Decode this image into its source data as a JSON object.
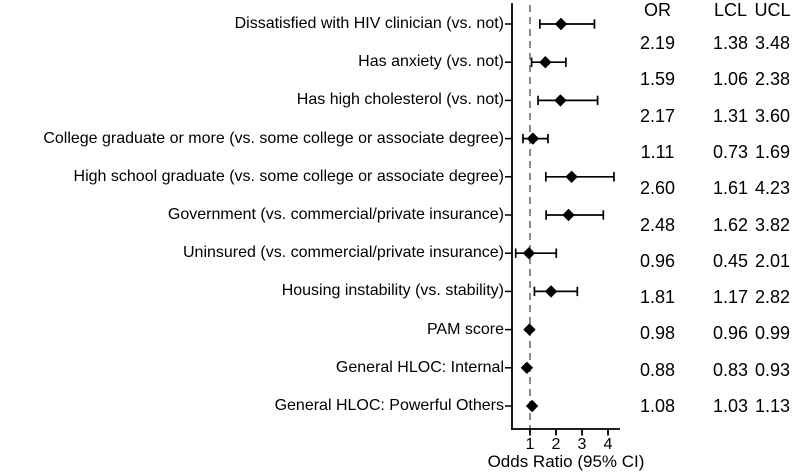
{
  "chart_data": {
    "type": "forest",
    "title": "",
    "xlabel": "Odds Ratio (95% CI)",
    "x_ticks": [
      1,
      2,
      3,
      4
    ],
    "xlim": [
      0.31,
      4.46
    ],
    "reference_line_x": 1,
    "grid": "off",
    "columns": {
      "or": "OR",
      "lcl": "LCL",
      "ucl": "UCL"
    },
    "rows": [
      {
        "label": "Dissatisfied with HIV clinician (vs. not)",
        "or": 2.19,
        "lcl": 1.38,
        "ucl": 3.48
      },
      {
        "label": "Has anxiety (vs. not)",
        "or": 1.59,
        "lcl": 1.06,
        "ucl": 2.38
      },
      {
        "label": "Has high cholesterol (vs. not)",
        "or": 2.17,
        "lcl": 1.31,
        "ucl": 3.6
      },
      {
        "label": "College graduate or more (vs. some college or associate degree)",
        "or": 1.11,
        "lcl": 0.73,
        "ucl": 1.69
      },
      {
        "label": "High school graduate (vs. some college or associate degree)",
        "or": 2.6,
        "lcl": 1.61,
        "ucl": 4.23
      },
      {
        "label": "Government (vs. commercial/private insurance)",
        "or": 2.48,
        "lcl": 1.62,
        "ucl": 3.82
      },
      {
        "label": "Uninsured (vs. commercial/private insurance)",
        "or": 0.96,
        "lcl": 0.45,
        "ucl": 2.01
      },
      {
        "label": "Housing instability (vs. stability)",
        "or": 1.81,
        "lcl": 1.17,
        "ucl": 2.82
      },
      {
        "label": "PAM score",
        "or": 0.98,
        "lcl": 0.96,
        "ucl": 0.99
      },
      {
        "label": "General HLOC: Internal",
        "or": 0.88,
        "lcl": 0.83,
        "ucl": 0.93
      },
      {
        "label": "General HLOC: Powerful Others",
        "or": 1.08,
        "lcl": 1.03,
        "ucl": 1.13
      }
    ]
  },
  "colors": {
    "text": "#000000",
    "marker": "#000000",
    "axis": "#000000",
    "reference_line": "#8c8c8c",
    "background": "#ffffff"
  }
}
